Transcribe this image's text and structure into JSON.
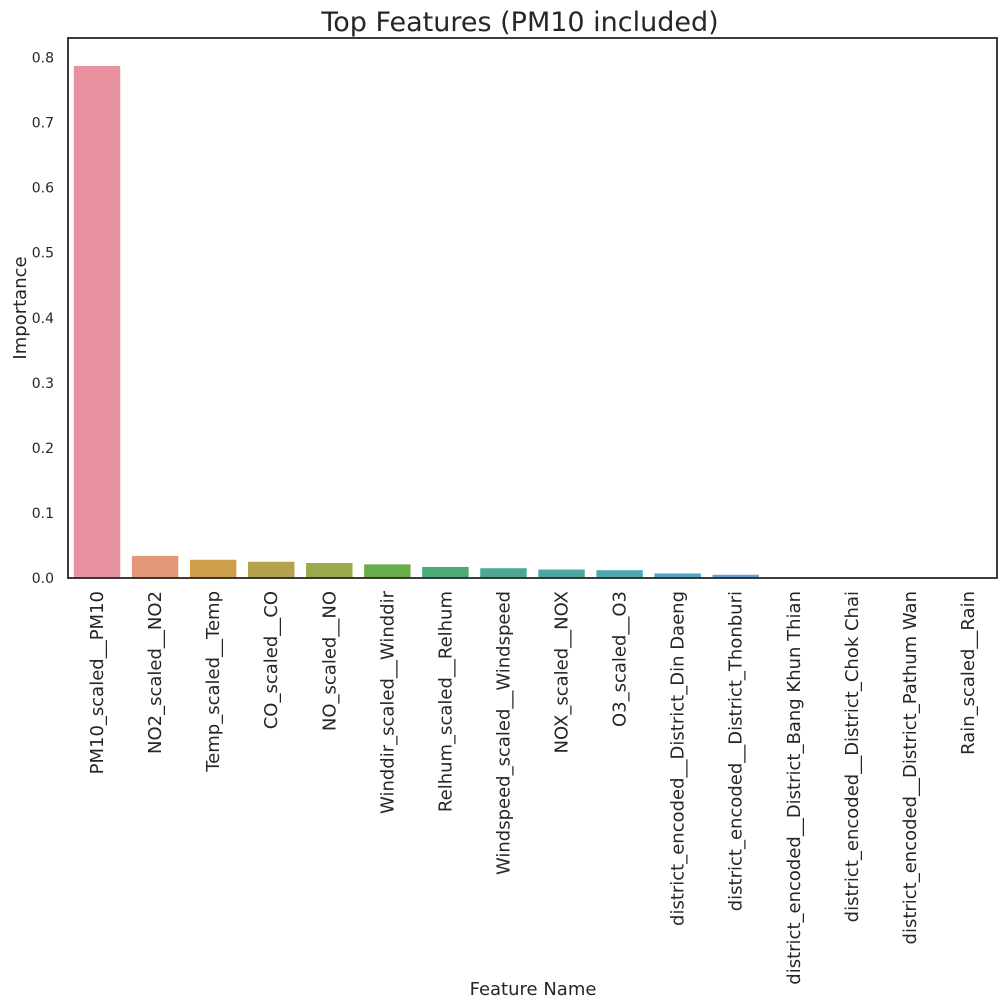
{
  "chart_data": {
    "type": "bar",
    "title": "Top Features (PM10 included)",
    "xlabel": "Feature Name",
    "ylabel": "Importance",
    "ylim": [
      0,
      0.83
    ],
    "yticks": [
      "0.0",
      "0.1",
      "0.2",
      "0.3",
      "0.4",
      "0.5",
      "0.6",
      "0.7",
      "0.8"
    ],
    "grid": false,
    "legend": "none",
    "categories": [
      "PM10_scaled__PM10",
      "NO2_scaled__NO2",
      "Temp_scaled__Temp",
      "CO_scaled__CO",
      "NO_scaled__NO",
      "Winddir_scaled__Winddir",
      "Relhum_scaled__Relhum",
      "Windspeed_scaled__Windspeed",
      "NOX_scaled__NOX",
      "O3_scaled__O3",
      "district_encoded__District_Din Daeng",
      "district_encoded__District_Thonburi",
      "district_encoded__District_Bang Khun Thian",
      "district_encoded__District_Chok Chai",
      "district_encoded__District_Pathum Wan",
      "Rain_scaled__Rain"
    ],
    "values": [
      0.787,
      0.034,
      0.028,
      0.025,
      0.023,
      0.021,
      0.017,
      0.015,
      0.013,
      0.012,
      0.007,
      0.005,
      0.0005,
      0.0004,
      0.0003,
      0.0002
    ],
    "colors": [
      "#e8929f",
      "#e39777",
      "#cf9e4b",
      "#b5a24b",
      "#9ca84d",
      "#6aae4b",
      "#4caa78",
      "#4ca98f",
      "#4ea8a2",
      "#4fa8b3",
      "#52a6c6",
      "#66a2d9",
      "#9d94e0",
      "#c28ae0",
      "#e08ad6",
      "#e98cba"
    ]
  }
}
